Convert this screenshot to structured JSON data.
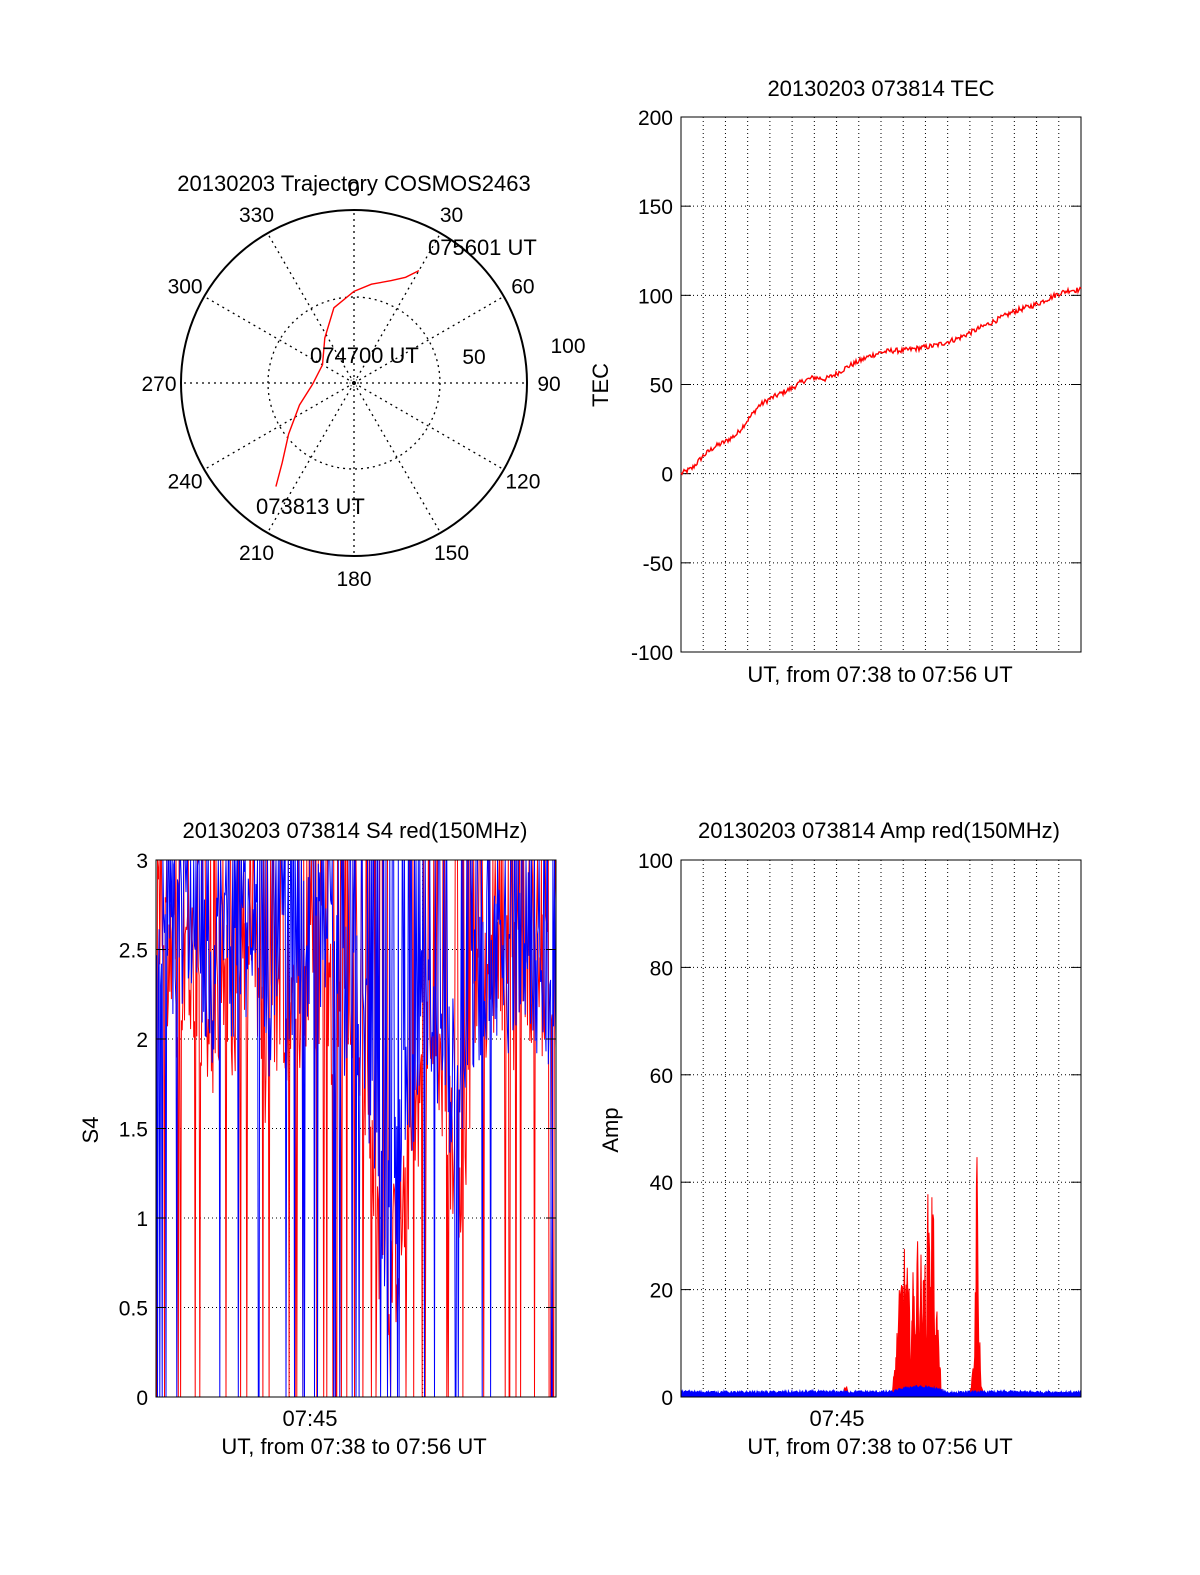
{
  "chart_data": [
    {
      "type": "polar",
      "title": "20130203 Trajectory COSMOS2463",
      "angle_labels": [
        "0",
        "30",
        "60",
        "90",
        "120",
        "150",
        "180",
        "210",
        "240",
        "270",
        "300",
        "330"
      ],
      "radius_labels": [
        "50",
        "100"
      ],
      "point_labels": {
        "start": "073813 UT",
        "mid": "074700 UT",
        "end": "075601 UT"
      },
      "trajectory": [
        [
          217,
          75
        ],
        [
          222,
          62
        ],
        [
          232,
          48
        ],
        [
          248,
          34
        ],
        [
          268,
          24
        ],
        [
          300,
          21
        ],
        [
          327,
          31
        ],
        [
          345,
          45
        ],
        [
          360,
          53
        ],
        [
          10,
          58
        ],
        [
          20,
          63
        ],
        [
          26,
          68
        ],
        [
          30,
          75
        ]
      ],
      "series_color": "#ff0000"
    },
    {
      "type": "line",
      "title": "20130203 073814 TEC",
      "xlabel": "UT, from 07:38 to 07:56 UT",
      "ylabel": "TEC",
      "ylim": [
        -100,
        200
      ],
      "yticks": [
        -100,
        -50,
        0,
        50,
        100,
        150,
        200
      ],
      "xlim": [
        0,
        18
      ],
      "x": [
        0,
        0.5,
        1,
        1.5,
        2,
        2.5,
        3,
        3.5,
        4,
        4.5,
        5,
        5.5,
        6,
        6.5,
        7,
        7.5,
        8,
        8.5,
        9,
        9.5,
        10,
        10.5,
        11,
        11.5,
        12,
        12.5,
        13,
        13.5,
        14,
        14.5,
        15,
        15.5,
        16,
        16.5,
        17,
        17.5,
        18
      ],
      "values": [
        0,
        3,
        10,
        15,
        18,
        22,
        30,
        38,
        42,
        45,
        48,
        52,
        54,
        53,
        56,
        60,
        63,
        66,
        68,
        69,
        69,
        70,
        71,
        72,
        74,
        76,
        79,
        82,
        85,
        88,
        91,
        93,
        95,
        98,
        101,
        103,
        103
      ],
      "series_color": "#ff0000"
    },
    {
      "type": "line",
      "title": "20130203 073814 S4 red(150MHz)",
      "xlabel": "UT, from 07:38 to 07:56 UT",
      "ylabel": "S4",
      "ylim": [
        0,
        3
      ],
      "yticks": [
        "0",
        "0.5",
        "1",
        "1.5",
        "2",
        "2.5",
        "3"
      ],
      "xtick_labels": [
        "07:45"
      ],
      "xlim": [
        0,
        18
      ],
      "series": [
        {
          "color": "#ff0000",
          "x": [
            0,
            0.5,
            1,
            1.5,
            2,
            2.5,
            3,
            3.5,
            4,
            4.5,
            5,
            5.5,
            6,
            6.5,
            7,
            7.5,
            8,
            8.5,
            9,
            9.5,
            10,
            10.5,
            11,
            11.5,
            12,
            12.5,
            13,
            13.5,
            14,
            14.5,
            15,
            15.5,
            16,
            16.5,
            17,
            17.5,
            18
          ],
          "values": [
            2.7,
            2.4,
            2.2,
            2.5,
            2.3,
            2.1,
            2.3,
            2.0,
            2.2,
            2.4,
            1.8,
            2.1,
            2.0,
            2.2,
            2.3,
            2.4,
            2.1,
            1.9,
            2.2,
            1.5,
            1.0,
            0.7,
            0.9,
            1.5,
            1.8,
            1.9,
            1.6,
            1.2,
            1.6,
            2.2,
            2.3,
            2.4,
            2.2,
            2.5,
            2.4,
            2.3,
            2.5
          ]
        },
        {
          "color": "#0000ff",
          "x": [
            0,
            0.5,
            1,
            1.5,
            2,
            2.5,
            3,
            3.5,
            4,
            4.5,
            5,
            5.5,
            6,
            6.5,
            7,
            7.5,
            8,
            8.5,
            9,
            9.5,
            10,
            10.5,
            11,
            11.5,
            12,
            12.5,
            13,
            13.5,
            14,
            14.5,
            15,
            15.5,
            16,
            16.5,
            17,
            17.5,
            18
          ],
          "values": [
            2.8,
            2.6,
            2.5,
            2.7,
            2.5,
            2.3,
            2.6,
            2.4,
            2.5,
            2.6,
            2.2,
            2.4,
            2.3,
            2.5,
            2.6,
            2.5,
            2.3,
            2.2,
            2.3,
            1.9,
            1.2,
            0.9,
            1.5,
            1.8,
            2.1,
            2.0,
            1.8,
            1.8,
            1.9,
            2.3,
            2.4,
            2.5,
            2.3,
            2.6,
            2.4,
            2.2,
            2.4
          ]
        }
      ]
    },
    {
      "type": "area",
      "title": "20130203 073814 Amp red(150MHz)",
      "xlabel": "UT, from 07:38 to 07:56 UT",
      "ylabel": "Amp",
      "ylim": [
        0,
        100
      ],
      "yticks": [
        0,
        20,
        40,
        60,
        80,
        100
      ],
      "xtick_labels": [
        "07:45"
      ],
      "xlim": [
        0,
        18
      ],
      "series": [
        {
          "color": "#ff0000",
          "x": [
            0,
            7.3,
            7.4,
            7.5,
            7.6,
            9.5,
            9.7,
            9.9,
            10.1,
            10.3,
            10.5,
            10.7,
            10.9,
            11.1,
            11.3,
            11.5,
            11.7,
            11.8,
            12.0,
            13.0,
            13.2,
            13.3,
            13.4,
            13.5,
            13.7,
            18
          ],
          "values": [
            0,
            0,
            3,
            1,
            0,
            0,
            12,
            25,
            30,
            18,
            26,
            33,
            22,
            38,
            43,
            20,
            3,
            0,
            0,
            0,
            8,
            53,
            20,
            2,
            0,
            0
          ]
        },
        {
          "color": "#0000ff",
          "x": [
            0,
            3,
            6,
            9.5,
            10,
            10.5,
            11,
            11.5,
            11.8,
            12,
            15,
            18
          ],
          "values": [
            0.6,
            0.5,
            0.6,
            0.6,
            1.2,
            1.6,
            1.4,
            1.2,
            0.7,
            0.5,
            0.6,
            0.5
          ]
        }
      ]
    }
  ]
}
